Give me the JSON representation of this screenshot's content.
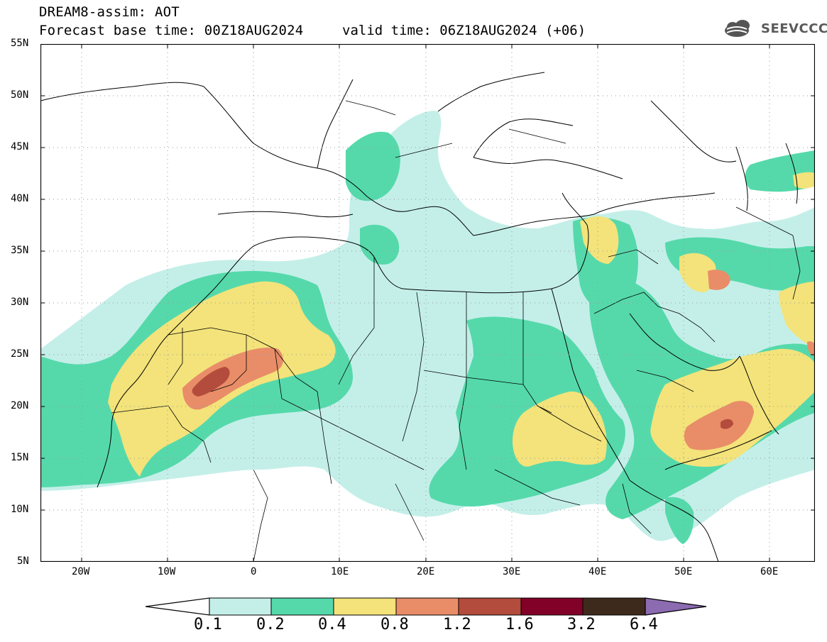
{
  "header": {
    "title": "DREAM8-assim: AOT",
    "base_time": "Forecast base time: 00Z18AUG2024",
    "valid_time": "valid time: 06Z18AUG2024 (+06)",
    "logo_text": "SEEVCCC"
  },
  "map": {
    "region": "North Africa / Middle East",
    "lon_range": [
      -25,
      65
    ],
    "lat_range": [
      5,
      55
    ],
    "graticule": "dotted",
    "ocean_color": "#ffffff",
    "land_color": "#ffffff",
    "border_color": "#000000"
  },
  "axes": {
    "lat_labels": [
      "55N",
      "50N",
      "45N",
      "40N",
      "35N",
      "30N",
      "25N",
      "20N",
      "15N",
      "10N",
      "5N"
    ],
    "lon_labels": [
      "20W",
      "10W",
      "0",
      "10E",
      "20E",
      "30E",
      "40E",
      "50E",
      "60E"
    ]
  },
  "colorbar": {
    "labels": [
      "0.1",
      "0.2",
      "0.4",
      "0.8",
      "1.2",
      "1.6",
      "3.2",
      "6.4"
    ],
    "colors": [
      "#c4efe9",
      "#55d9ab",
      "#f3e37a",
      "#e98d68",
      "#b34c3c",
      "#820128",
      "#3e2a1c",
      "#8c6bb1"
    ]
  },
  "legend_colors": {
    "c01": "#c4efe9",
    "c02": "#55d9ab",
    "c04": "#f3e37a",
    "c08": "#e98d68",
    "c12": "#b34c3c"
  }
}
